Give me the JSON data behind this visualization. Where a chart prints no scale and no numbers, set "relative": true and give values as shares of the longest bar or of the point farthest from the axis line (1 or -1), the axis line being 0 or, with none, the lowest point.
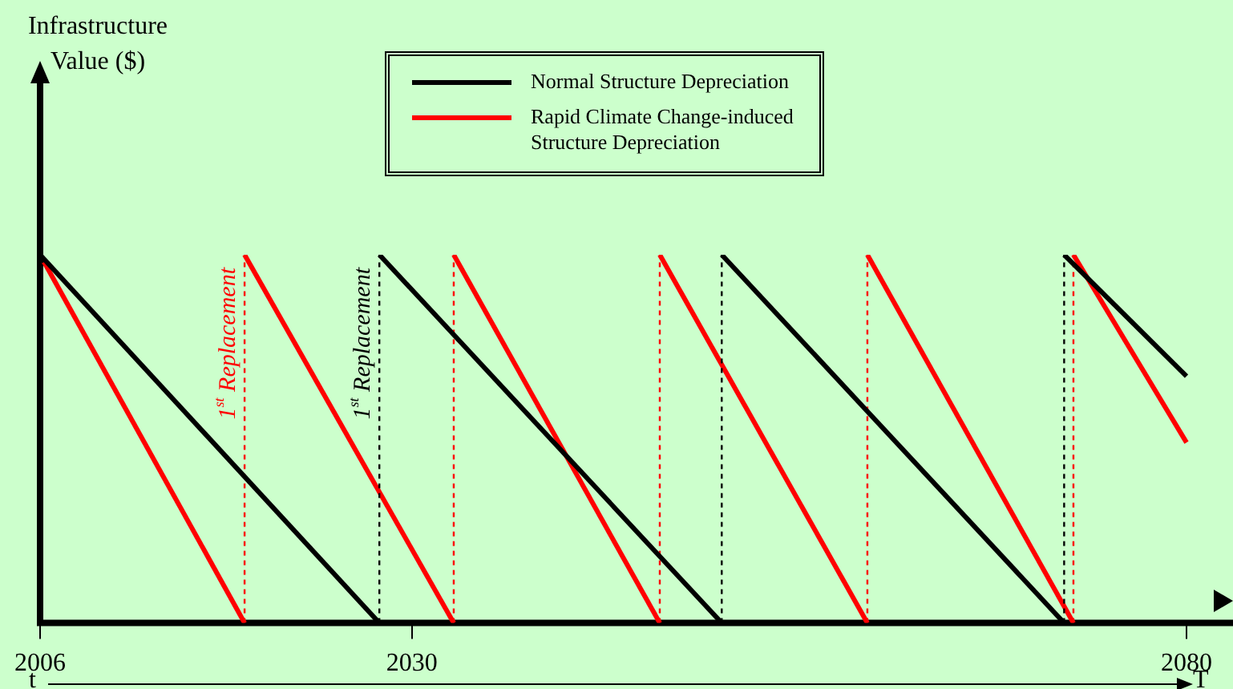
{
  "chart_data": {
    "type": "line",
    "relative": true,
    "xlim": [
      2006,
      2083
    ],
    "xticks": [
      2006,
      2030,
      2080
    ],
    "grid": false,
    "legend": "top",
    "marker": "none",
    "line_style": "solid",
    "series": [
      {
        "name": "Normal Structure Depreciation",
        "color": "#000000",
        "x": [
          2006,
          2027.9,
          2027.9,
          2050.0,
          2050.0,
          2072.1,
          2072.1,
          2080
        ],
        "values": [
          1,
          0,
          1,
          0,
          1,
          0,
          1,
          0.67
        ]
      },
      {
        "name": "Rapid Climate Change-induced Structure Depreciation",
        "color": "#ff0000",
        "x": [
          2006,
          2019.2,
          2019.2,
          2032.7,
          2032.7,
          2046.0,
          2046.0,
          2059.4,
          2059.4,
          2072.7,
          2072.7,
          2080
        ],
        "values": [
          1,
          0,
          1,
          0,
          1,
          0,
          1,
          0,
          1,
          0,
          1,
          0.49
        ]
      }
    ],
    "annotations": [
      "Infrastructure Value ($)",
      "1$^{st}$ Replacement",
      "1$^{st}$ Replacement",
      "t",
      "T"
    ]
  }
}
